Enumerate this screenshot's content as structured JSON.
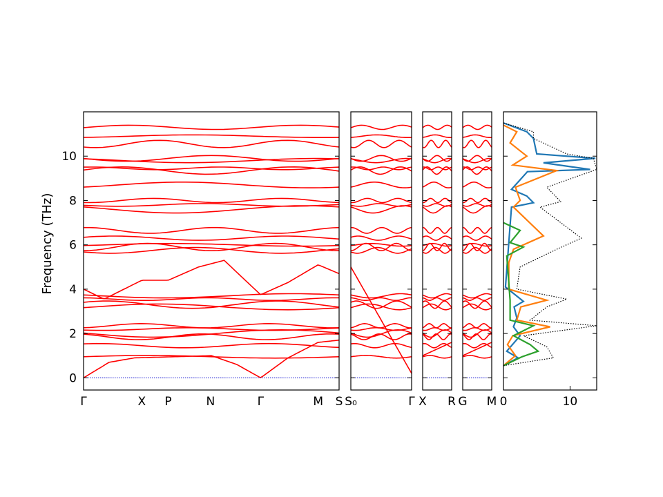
{
  "chart_data": {
    "type": "line",
    "title": "",
    "ylabel": "Frequency (THz)",
    "ylim": [
      -0.55,
      12.0
    ],
    "yticks": [
      0,
      2,
      4,
      6,
      8,
      10
    ],
    "band_color": "#ff0000",
    "zero_line_color": "#0000cc",
    "band_panels": [
      {
        "labels": [
          "Γ",
          "X",
          "P",
          "N",
          "Γ",
          "M",
          "S"
        ],
        "label_pos": [
          0,
          0.228,
          0.331,
          0.497,
          0.693,
          0.918,
          1
        ]
      },
      {
        "labels": [
          "S₀",
          "Γ"
        ],
        "label_pos": [
          0,
          1
        ]
      },
      {
        "labels": [
          "X",
          "R"
        ],
        "label_pos": [
          0,
          1
        ]
      },
      {
        "labels": [
          "G",
          "M"
        ],
        "label_pos": [
          0,
          1
        ]
      }
    ],
    "band_levels": [
      0.95,
      1.45,
      1.85,
      2.0,
      2.2,
      2.35,
      3.2,
      3.3,
      3.55,
      3.7,
      5.75,
      5.9,
      6.0,
      6.3,
      6.65,
      7.6,
      7.8,
      8.0,
      8.7,
      9.35,
      9.45,
      9.8,
      9.9,
      10.55,
      10.9,
      11.3
    ],
    "gamma_path": {
      "acoustic": [
        [
          0.0,
          0.0
        ],
        [
          0.1,
          0.7
        ],
        [
          0.2,
          0.9
        ],
        [
          0.35,
          0.95
        ],
        [
          0.5,
          1.0
        ],
        [
          0.6,
          0.6
        ],
        [
          0.693,
          0.0
        ],
        [
          0.8,
          0.9
        ],
        [
          0.918,
          1.6
        ],
        [
          1.0,
          1.7
        ]
      ],
      "optic_4": [
        [
          0.0,
          4.0
        ],
        [
          0.08,
          3.55
        ],
        [
          0.228,
          4.4
        ],
        [
          0.331,
          4.4
        ],
        [
          0.45,
          5.0
        ],
        [
          0.55,
          5.3
        ],
        [
          0.693,
          3.75
        ],
        [
          0.8,
          4.3
        ],
        [
          0.918,
          5.1
        ],
        [
          1.0,
          4.7
        ]
      ]
    },
    "dos": {
      "xlabel": "",
      "xlim": [
        0,
        14
      ],
      "xticks": [
        0,
        10
      ],
      "series": [
        {
          "color": "#1f77b4",
          "values": [
            [
              0.55,
              0
            ],
            [
              0.9,
              2.2
            ],
            [
              1.2,
              0.5
            ],
            [
              1.9,
              2.5
            ],
            [
              2.3,
              1.5
            ],
            [
              2.7,
              2.0
            ],
            [
              3.2,
              1.6
            ],
            [
              3.45,
              3.0
            ],
            [
              4.1,
              0.3
            ],
            [
              7.7,
              1.2
            ],
            [
              7.9,
              4.5
            ],
            [
              8.2,
              3.5
            ],
            [
              8.5,
              1.2
            ],
            [
              9.3,
              3.6
            ],
            [
              9.4,
              13.0
            ],
            [
              9.7,
              6.0
            ],
            [
              9.9,
              13.8
            ],
            [
              10.1,
              5.0
            ],
            [
              10.8,
              4.5
            ],
            [
              11.1,
              3.5
            ],
            [
              11.5,
              0
            ]
          ]
        },
        {
          "color": "#ff7f0e",
          "values": [
            [
              0.55,
              0
            ],
            [
              1.0,
              1.8
            ],
            [
              1.5,
              0.6
            ],
            [
              1.9,
              1.4
            ],
            [
              2.3,
              7.0
            ],
            [
              2.6,
              2.0
            ],
            [
              3.2,
              2.6
            ],
            [
              3.5,
              6.5
            ],
            [
              4.0,
              0.8
            ],
            [
              5.2,
              0.8
            ],
            [
              5.8,
              1.5
            ],
            [
              6.4,
              6.0
            ],
            [
              7.7,
              1.5
            ],
            [
              8.0,
              2.5
            ],
            [
              8.6,
              1.8
            ],
            [
              9.35,
              8.0
            ],
            [
              9.6,
              1.4
            ],
            [
              10.0,
              3.5
            ],
            [
              10.6,
              1.0
            ],
            [
              11.1,
              2.0
            ],
            [
              11.4,
              0
            ]
          ]
        },
        {
          "color": "#2ca02c",
          "values": [
            [
              0.55,
              0
            ],
            [
              0.95,
              2.8
            ],
            [
              1.2,
              5.2
            ],
            [
              1.5,
              4.0
            ],
            [
              1.9,
              1.5
            ],
            [
              2.35,
              4.5
            ],
            [
              2.6,
              1.0
            ],
            [
              3.5,
              1.0
            ],
            [
              5.5,
              0.5
            ],
            [
              5.9,
              3.0
            ],
            [
              6.1,
              1.0
            ],
            [
              6.65,
              2.5
            ],
            [
              7.0,
              0
            ]
          ]
        },
        {
          "color": "#000000",
          "dashed": true,
          "values": [
            [
              0.55,
              0
            ],
            [
              0.9,
              7.5
            ],
            [
              1.4,
              6.5
            ],
            [
              1.9,
              3.0
            ],
            [
              2.35,
              14.0
            ],
            [
              2.6,
              4.0
            ],
            [
              3.2,
              6.5
            ],
            [
              3.55,
              9.5
            ],
            [
              4.0,
              2.0
            ],
            [
              5.0,
              2.5
            ],
            [
              5.8,
              8.0
            ],
            [
              6.3,
              11.7
            ],
            [
              7.7,
              5.5
            ],
            [
              7.95,
              8.6
            ],
            [
              8.6,
              6.5
            ],
            [
              9.4,
              14.0
            ],
            [
              9.9,
              13.5
            ],
            [
              10.1,
              9.5
            ],
            [
              10.8,
              4.5
            ],
            [
              11.1,
              4.5
            ],
            [
              11.5,
              0
            ]
          ]
        }
      ]
    }
  }
}
